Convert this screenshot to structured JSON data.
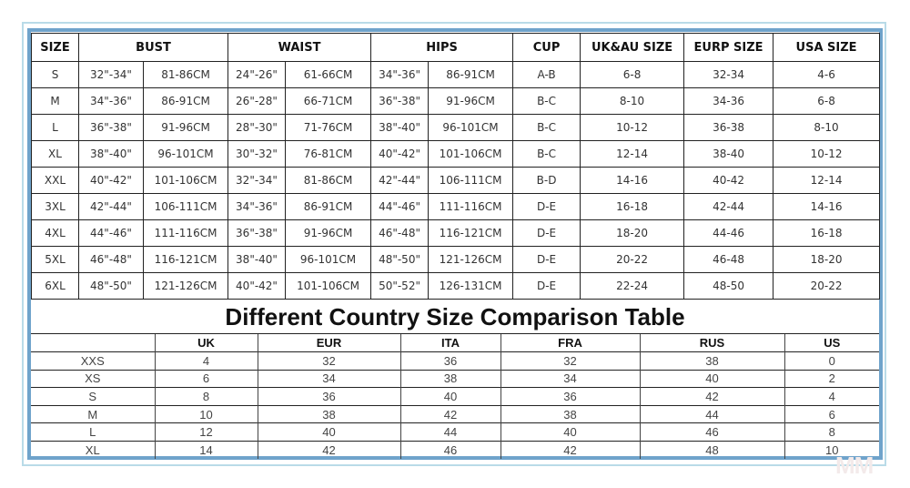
{
  "size_chart": {
    "headers": {
      "size": "SIZE",
      "bust": "BUST",
      "waist": "WAIST",
      "hips": "HIPS",
      "cup": "CUP",
      "ukau": "UK&AU SIZE",
      "eurp": "EURP SIZE",
      "usa": "USA SIZE"
    },
    "rows": [
      [
        "S",
        "32\"-34\"",
        "81-86CM",
        "24\"-26\"",
        "61-66CM",
        "34\"-36\"",
        "86-91CM",
        "A-B",
        "6-8",
        "32-34",
        "4-6"
      ],
      [
        "M",
        "34\"-36\"",
        "86-91CM",
        "26\"-28\"",
        "66-71CM",
        "36\"-38\"",
        "91-96CM",
        "B-C",
        "8-10",
        "34-36",
        "6-8"
      ],
      [
        "L",
        "36\"-38\"",
        "91-96CM",
        "28\"-30\"",
        "71-76CM",
        "38\"-40\"",
        "96-101CM",
        "B-C",
        "10-12",
        "36-38",
        "8-10"
      ],
      [
        "XL",
        "38\"-40\"",
        "96-101CM",
        "30\"-32\"",
        "76-81CM",
        "40\"-42\"",
        "101-106CM",
        "B-C",
        "12-14",
        "38-40",
        "10-12"
      ],
      [
        "XXL",
        "40\"-42\"",
        "101-106CM",
        "32\"-34\"",
        "81-86CM",
        "42\"-44\"",
        "106-111CM",
        "B-D",
        "14-16",
        "40-42",
        "12-14"
      ],
      [
        "3XL",
        "42\"-44\"",
        "106-111CM",
        "34\"-36\"",
        "86-91CM",
        "44\"-46\"",
        "111-116CM",
        "D-E",
        "16-18",
        "42-44",
        "14-16"
      ],
      [
        "4XL",
        "44\"-46\"",
        "111-116CM",
        "36\"-38\"",
        "91-96CM",
        "46\"-48\"",
        "116-121CM",
        "D-E",
        "18-20",
        "44-46",
        "16-18"
      ],
      [
        "5XL",
        "46\"-48\"",
        "116-121CM",
        "38\"-40\"",
        "96-101CM",
        "48\"-50\"",
        "121-126CM",
        "D-E",
        "20-22",
        "46-48",
        "18-20"
      ],
      [
        "6XL",
        "48\"-50\"",
        "121-126CM",
        "40\"-42\"",
        "101-106CM",
        "50\"-52\"",
        "126-131CM",
        "D-E",
        "22-24",
        "48-50",
        "20-22"
      ]
    ]
  },
  "comparison": {
    "title": "Different Country Size Comparison Table",
    "headers": [
      "",
      "UK",
      "EUR",
      "ITA",
      "FRA",
      "RUS",
      "US"
    ],
    "rows": [
      [
        "XXS",
        "4",
        "32",
        "36",
        "32",
        "38",
        "0"
      ],
      [
        "XS",
        "6",
        "34",
        "38",
        "34",
        "40",
        "2"
      ],
      [
        "S",
        "8",
        "36",
        "40",
        "36",
        "42",
        "4"
      ],
      [
        "M",
        "10",
        "38",
        "42",
        "38",
        "44",
        "6"
      ],
      [
        "L",
        "12",
        "40",
        "44",
        "40",
        "46",
        "8"
      ],
      [
        "XL",
        "14",
        "42",
        "46",
        "42",
        "48",
        "10"
      ]
    ]
  },
  "watermark": "MM",
  "colors": {
    "frame": "#6fa3cb",
    "outer_frame": "#b9dbe8"
  }
}
